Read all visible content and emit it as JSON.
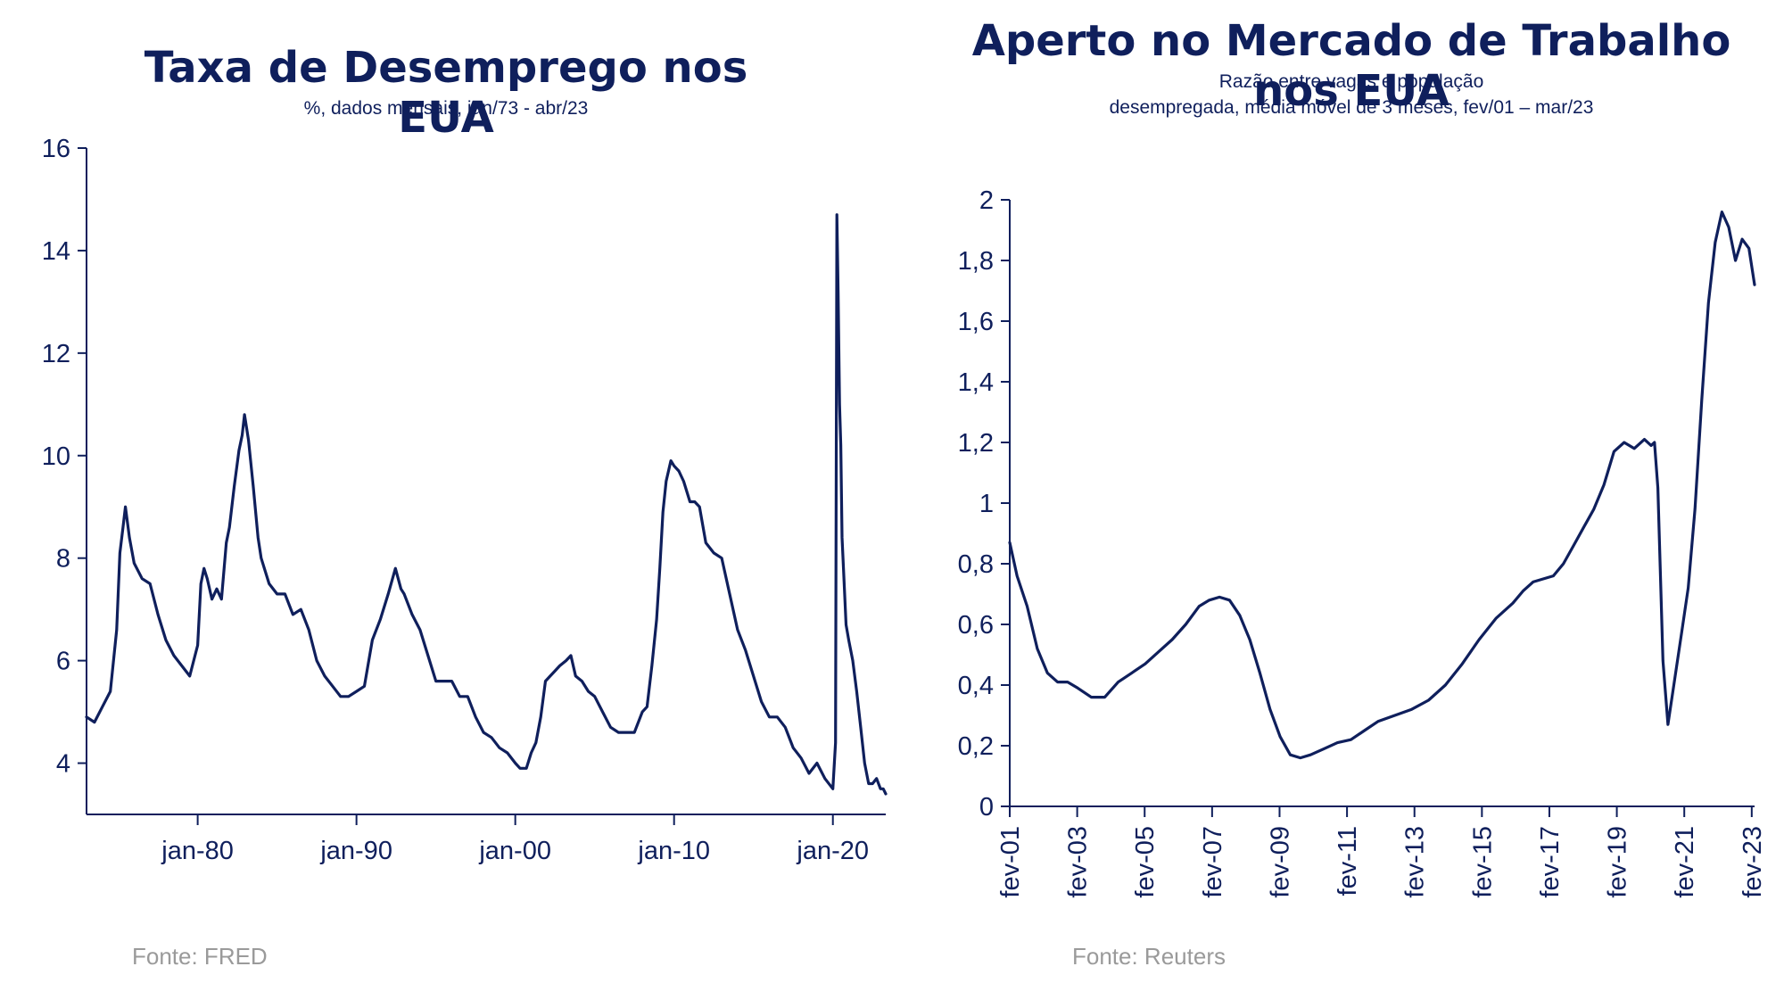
{
  "colors": {
    "line": "#0f1f5c",
    "axis": "#0f1f5c",
    "source": "#9a9a9a",
    "background": "#ffffff"
  },
  "left": {
    "title": "Taxa de Desemprego nos EUA",
    "subtitle": "%, dados mensais, jan/73 - abr/23",
    "source": "Fonte: FRED"
  },
  "right": {
    "title": "Aperto no Mercado de Trabalho nos EUA",
    "subtitle_line1": "Razão entre vagas e população",
    "subtitle_line2": "desempregada, média móvel de 3 meses, fev/01 – mar/23",
    "source": "Fonte: Reuters"
  },
  "chart_data": [
    {
      "type": "line",
      "title": "Taxa de Desemprego nos EUA",
      "subtitle": "%, dados mensais, jan/73 - abr/23",
      "xlabel": "",
      "ylabel": "",
      "xlim": [
        1973.0,
        2023.33
      ],
      "ylim": [
        3,
        16
      ],
      "yticks": [
        4,
        6,
        8,
        10,
        12,
        14,
        16
      ],
      "ytick_labels": [
        "4",
        "6",
        "8",
        "10",
        "12",
        "14",
        "16"
      ],
      "xticks": [
        1980,
        1990,
        2000,
        2010,
        2020
      ],
      "xtick_labels": [
        "jan-80",
        "jan-90",
        "jan-00",
        "jan-10",
        "jan-20"
      ],
      "grid": false,
      "series": [
        {
          "x": [
            1973.0,
            1973.5,
            1974.0,
            1974.5,
            1974.9,
            1975.1,
            1975.3,
            1975.45,
            1975.7,
            1976.0,
            1976.5,
            1977.0,
            1977.5,
            1978.0,
            1978.5,
            1979.0,
            1979.5,
            1980.0,
            1980.2,
            1980.4,
            1980.6,
            1980.9,
            1981.2,
            1981.5,
            1981.8,
            1982.0,
            1982.3,
            1982.6,
            1982.8,
            1982.95,
            1983.2,
            1983.5,
            1983.8,
            1984.0,
            1984.5,
            1985.0,
            1985.5,
            1986.0,
            1986.5,
            1987.0,
            1987.5,
            1988.0,
            1988.5,
            1989.0,
            1989.5,
            1990.0,
            1990.5,
            1991.0,
            1991.5,
            1992.0,
            1992.45,
            1992.8,
            1993.0,
            1993.5,
            1994.0,
            1994.5,
            1995.0,
            1995.5,
            1996.0,
            1996.5,
            1997.0,
            1997.5,
            1998.0,
            1998.5,
            1999.0,
            1999.5,
            2000.0,
            2000.3,
            2000.7,
            2001.0,
            2001.3,
            2001.6,
            2001.9,
            2002.2,
            2002.5,
            2002.8,
            2003.2,
            2003.5,
            2003.8,
            2004.2,
            2004.6,
            2005.0,
            2005.5,
            2006.0,
            2006.5,
            2007.0,
            2007.5,
            2008.0,
            2008.3,
            2008.6,
            2008.9,
            2009.1,
            2009.3,
            2009.5,
            2009.8,
            2010.0,
            2010.3,
            2010.6,
            2011.0,
            2011.3,
            2011.6,
            2012.0,
            2012.5,
            2013.0,
            2013.5,
            2014.0,
            2014.5,
            2015.0,
            2015.5,
            2016.0,
            2016.5,
            2017.0,
            2017.5,
            2018.0,
            2018.5,
            2019.0,
            2019.5,
            2020.0,
            2020.17,
            2020.25,
            2020.33,
            2020.42,
            2020.5,
            2020.58,
            2020.67,
            2020.83,
            2021.0,
            2021.25,
            2021.5,
            2021.75,
            2022.0,
            2022.25,
            2022.5,
            2022.75,
            2023.0,
            2023.17,
            2023.33
          ],
          "y": [
            4.9,
            4.8,
            5.1,
            5.4,
            6.6,
            8.1,
            8.6,
            9.0,
            8.4,
            7.9,
            7.6,
            7.5,
            6.9,
            6.4,
            6.1,
            5.9,
            5.7,
            6.3,
            7.5,
            7.8,
            7.6,
            7.2,
            7.4,
            7.2,
            8.3,
            8.6,
            9.4,
            10.1,
            10.4,
            10.8,
            10.3,
            9.4,
            8.4,
            8.0,
            7.5,
            7.3,
            7.3,
            6.9,
            7.0,
            6.6,
            6.0,
            5.7,
            5.5,
            5.3,
            5.3,
            5.4,
            5.5,
            6.4,
            6.8,
            7.3,
            7.8,
            7.4,
            7.3,
            6.9,
            6.6,
            6.1,
            5.6,
            5.6,
            5.6,
            5.3,
            5.3,
            4.9,
            4.6,
            4.5,
            4.3,
            4.2,
            4.0,
            3.9,
            3.9,
            4.2,
            4.4,
            4.9,
            5.6,
            5.7,
            5.8,
            5.9,
            6.0,
            6.1,
            5.7,
            5.6,
            5.4,
            5.3,
            5.0,
            4.7,
            4.6,
            4.6,
            4.6,
            5.0,
            5.1,
            5.9,
            6.8,
            7.8,
            8.9,
            9.5,
            9.9,
            9.8,
            9.7,
            9.5,
            9.1,
            9.1,
            9.0,
            8.3,
            8.1,
            8.0,
            7.3,
            6.6,
            6.2,
            5.7,
            5.2,
            4.9,
            4.9,
            4.7,
            4.3,
            4.1,
            3.8,
            4.0,
            3.7,
            3.5,
            4.4,
            14.7,
            13.2,
            11.0,
            10.2,
            8.4,
            7.8,
            6.7,
            6.4,
            6.0,
            5.4,
            4.7,
            4.0,
            3.6,
            3.6,
            3.7,
            3.5,
            3.5,
            3.4
          ]
        }
      ]
    },
    {
      "type": "line",
      "title": "Aperto no Mercado de Trabalho nos EUA",
      "subtitle": "Razão entre vagas e população desempregada, média móvel de 3 meses, fev/01 – mar/23",
      "xlabel": "",
      "ylabel": "",
      "xlim": [
        2001.083,
        2023.167
      ],
      "ylim": [
        0,
        2
      ],
      "yticks": [
        0,
        0.2,
        0.4,
        0.6,
        0.8,
        1,
        1.2,
        1.4,
        1.6,
        1.8,
        2
      ],
      "ytick_labels": [
        "0",
        "0,2",
        "0,4",
        "0,6",
        "0,8",
        "1",
        "1,2",
        "1,4",
        "1,6",
        "1,8",
        "2"
      ],
      "xticks": [
        2001.083,
        2003.083,
        2005.083,
        2007.083,
        2009.083,
        2011.083,
        2013.083,
        2015.083,
        2017.083,
        2019.083,
        2021.083,
        2023.083
      ],
      "xtick_labels": [
        "fev-01",
        "fev-03",
        "fev-05",
        "fev-07",
        "fev-09",
        "fev-11",
        "fev-13",
        "fev-15",
        "fev-17",
        "fev-19",
        "fev-21",
        "fev-23"
      ],
      "grid": false,
      "series": [
        {
          "x": [
            2001.083,
            2001.3,
            2001.6,
            2001.9,
            2002.2,
            2002.5,
            2002.8,
            2003.1,
            2003.5,
            2003.9,
            2004.3,
            2004.7,
            2005.1,
            2005.5,
            2005.9,
            2006.3,
            2006.7,
            2007.0,
            2007.3,
            2007.6,
            2007.9,
            2008.2,
            2008.5,
            2008.8,
            2009.1,
            2009.4,
            2009.7,
            2010.0,
            2010.4,
            2010.8,
            2011.2,
            2011.6,
            2012.0,
            2012.5,
            2013.0,
            2013.5,
            2014.0,
            2014.5,
            2015.0,
            2015.5,
            2016.0,
            2016.3,
            2016.6,
            2016.9,
            2017.2,
            2017.5,
            2017.8,
            2018.1,
            2018.4,
            2018.7,
            2019.0,
            2019.3,
            2019.6,
            2019.9,
            2020.1,
            2020.2,
            2020.3,
            2020.45,
            2020.6,
            2020.8,
            2021.0,
            2021.2,
            2021.4,
            2021.6,
            2021.8,
            2022.0,
            2022.2,
            2022.4,
            2022.6,
            2022.8,
            2023.0,
            2023.167
          ],
          "y": [
            0.87,
            0.76,
            0.66,
            0.52,
            0.44,
            0.41,
            0.41,
            0.39,
            0.36,
            0.36,
            0.41,
            0.44,
            0.47,
            0.51,
            0.55,
            0.6,
            0.66,
            0.68,
            0.69,
            0.68,
            0.63,
            0.55,
            0.44,
            0.32,
            0.23,
            0.17,
            0.16,
            0.17,
            0.19,
            0.21,
            0.22,
            0.25,
            0.28,
            0.3,
            0.32,
            0.35,
            0.4,
            0.47,
            0.55,
            0.62,
            0.67,
            0.71,
            0.74,
            0.75,
            0.76,
            0.8,
            0.86,
            0.92,
            0.98,
            1.06,
            1.17,
            1.2,
            1.18,
            1.21,
            1.19,
            1.2,
            1.05,
            0.48,
            0.27,
            0.42,
            0.57,
            0.72,
            0.98,
            1.34,
            1.66,
            1.86,
            1.96,
            1.91,
            1.8,
            1.87,
            1.84,
            1.72
          ]
        }
      ]
    }
  ]
}
